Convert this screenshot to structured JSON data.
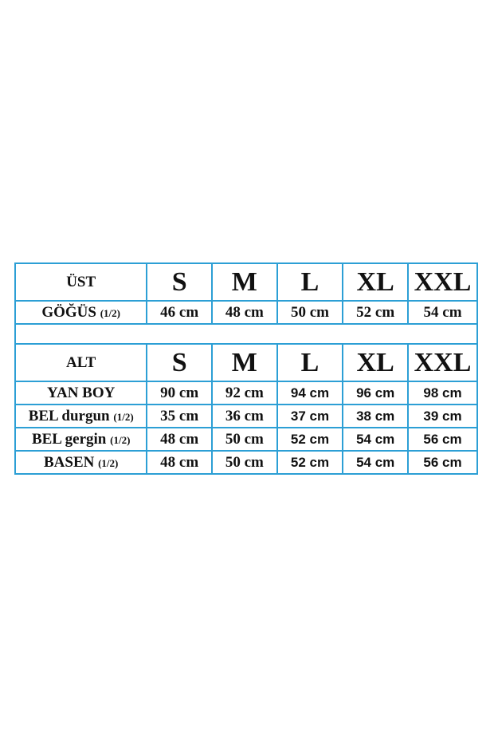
{
  "border_color": "#2c9fd5",
  "sizes": [
    "S",
    "M",
    "L",
    "XL",
    "XXL"
  ],
  "top": {
    "header": "ÜST",
    "rows": [
      {
        "label": "GÖĞÜS",
        "note": "(1/2)",
        "values": [
          "46 cm",
          "48 cm",
          "50 cm",
          "52 cm",
          "54 cm"
        ]
      }
    ]
  },
  "bottom": {
    "header": "ALT",
    "rows": [
      {
        "label": "YAN BOY",
        "note": "",
        "values": [
          "90 cm",
          "92 cm",
          "94 cm",
          "96 cm",
          "98 cm"
        ]
      },
      {
        "label": "BEL durgun",
        "note": "(1/2)",
        "values": [
          "35 cm",
          "36 cm",
          "37 cm",
          "38 cm",
          "39 cm"
        ]
      },
      {
        "label": "BEL gergin",
        "note": "(1/2)",
        "values": [
          "48 cm",
          "50 cm",
          "52 cm",
          "54 cm",
          "56 cm"
        ]
      },
      {
        "label": "BASEN",
        "note": "(1/2)",
        "values": [
          "48 cm",
          "50 cm",
          "52 cm",
          "54 cm",
          "56 cm"
        ]
      }
    ]
  }
}
